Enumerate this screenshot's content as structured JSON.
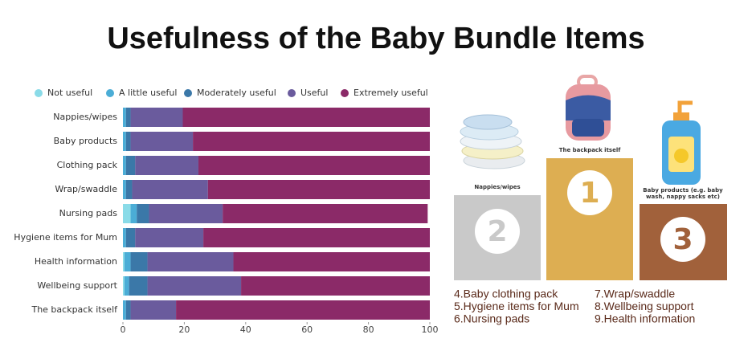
{
  "chart_data": {
    "type": "stacked-bar-horizontal",
    "title": "Usefulness of the Baby Bundle Items",
    "categories": [
      "Nappies/wipes",
      "Baby products",
      "Clothing pack",
      "Wrap/swaddle",
      "Nursing pads",
      "Hygiene items for Mum",
      "Health information",
      "Wellbeing support",
      "The backpack itself"
    ],
    "series": [
      {
        "name": "Not useful",
        "color": "#8adbe8",
        "values": [
          0,
          0,
          0,
          0,
          2.5,
          0,
          0.5,
          0.5,
          0
        ]
      },
      {
        "name": "A little useful",
        "color": "#4badd6",
        "values": [
          1,
          1,
          1,
          1,
          2,
          1,
          2,
          1.5,
          1
        ]
      },
      {
        "name": "Moderately useful",
        "color": "#3b78a8",
        "values": [
          1.5,
          1.5,
          3,
          2,
          4,
          3,
          5.5,
          6,
          1.5
        ]
      },
      {
        "name": "Useful",
        "color": "#6a5b9d",
        "values": [
          17,
          20.3,
          20.6,
          24.7,
          24,
          22.2,
          28,
          30.5,
          14.8
        ]
      },
      {
        "name": "Extremely useful",
        "color": "#8b2a68",
        "values": [
          80.5,
          77.2,
          75.4,
          72.3,
          66.8,
          73.8,
          64,
          61.5,
          82.7
        ]
      }
    ],
    "xlim": [
      0,
      100
    ],
    "xticks": [
      0,
      20,
      40,
      60,
      80,
      100
    ],
    "grid": false,
    "legend": "top"
  },
  "podium": {
    "first": {
      "label": "The backpack itself",
      "rank": "1"
    },
    "second": {
      "label": "Nappies/wipes",
      "rank": "2"
    },
    "third": {
      "label": "Baby products (e.g. baby wash, nappy sacks etc)",
      "rank": "3"
    }
  },
  "list": {
    "left": [
      "4.Baby clothing pack",
      "5.Hygiene items for Mum",
      "6.Nursing pads"
    ],
    "right": [
      "7.Wrap/swaddle",
      "8.Wellbeing support",
      "9.Health information"
    ]
  }
}
